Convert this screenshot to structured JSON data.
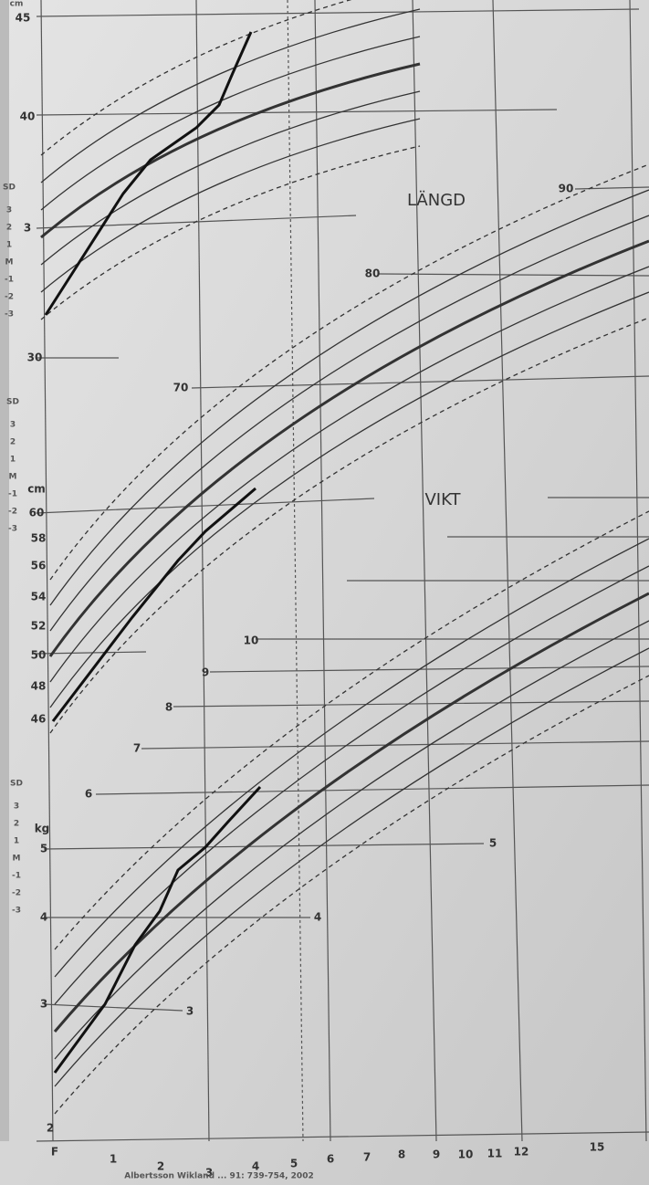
{
  "head_circumference": {
    "unit": "cm",
    "ticks": [
      "45",
      "40",
      "3",
      "30"
    ]
  },
  "length": {
    "title": "LÄNGD",
    "unit": "cm",
    "ticks": [
      "90",
      "80",
      "70",
      "60",
      "58",
      "56",
      "54",
      "52",
      "50",
      "48",
      "46"
    ]
  },
  "weight": {
    "title": "VIKT",
    "unit": "kg",
    "ticks": [
      "10",
      "9",
      "8",
      "7",
      "6",
      "5",
      "4",
      "3",
      "2"
    ],
    "axis_ticks": [
      "5",
      "4",
      "3"
    ]
  },
  "sd_scales": [
    [
      "SD",
      "3",
      "2",
      "1",
      "M",
      "-1",
      "-2",
      "-3"
    ],
    [
      "SD",
      "3",
      "2",
      "1",
      "M",
      "-1",
      "-2",
      "-3"
    ],
    [
      "SD",
      "3",
      "2",
      "1",
      "M",
      "-1",
      "-2",
      "-3"
    ]
  ],
  "x_axis": [
    "F",
    "1",
    "2",
    "3",
    "4",
    "5",
    "6",
    "7",
    "8",
    "9",
    "10",
    "11",
    "12",
    "15"
  ],
  "footer": "Albertsson Wikland ... 91: 739-754, 2002"
}
